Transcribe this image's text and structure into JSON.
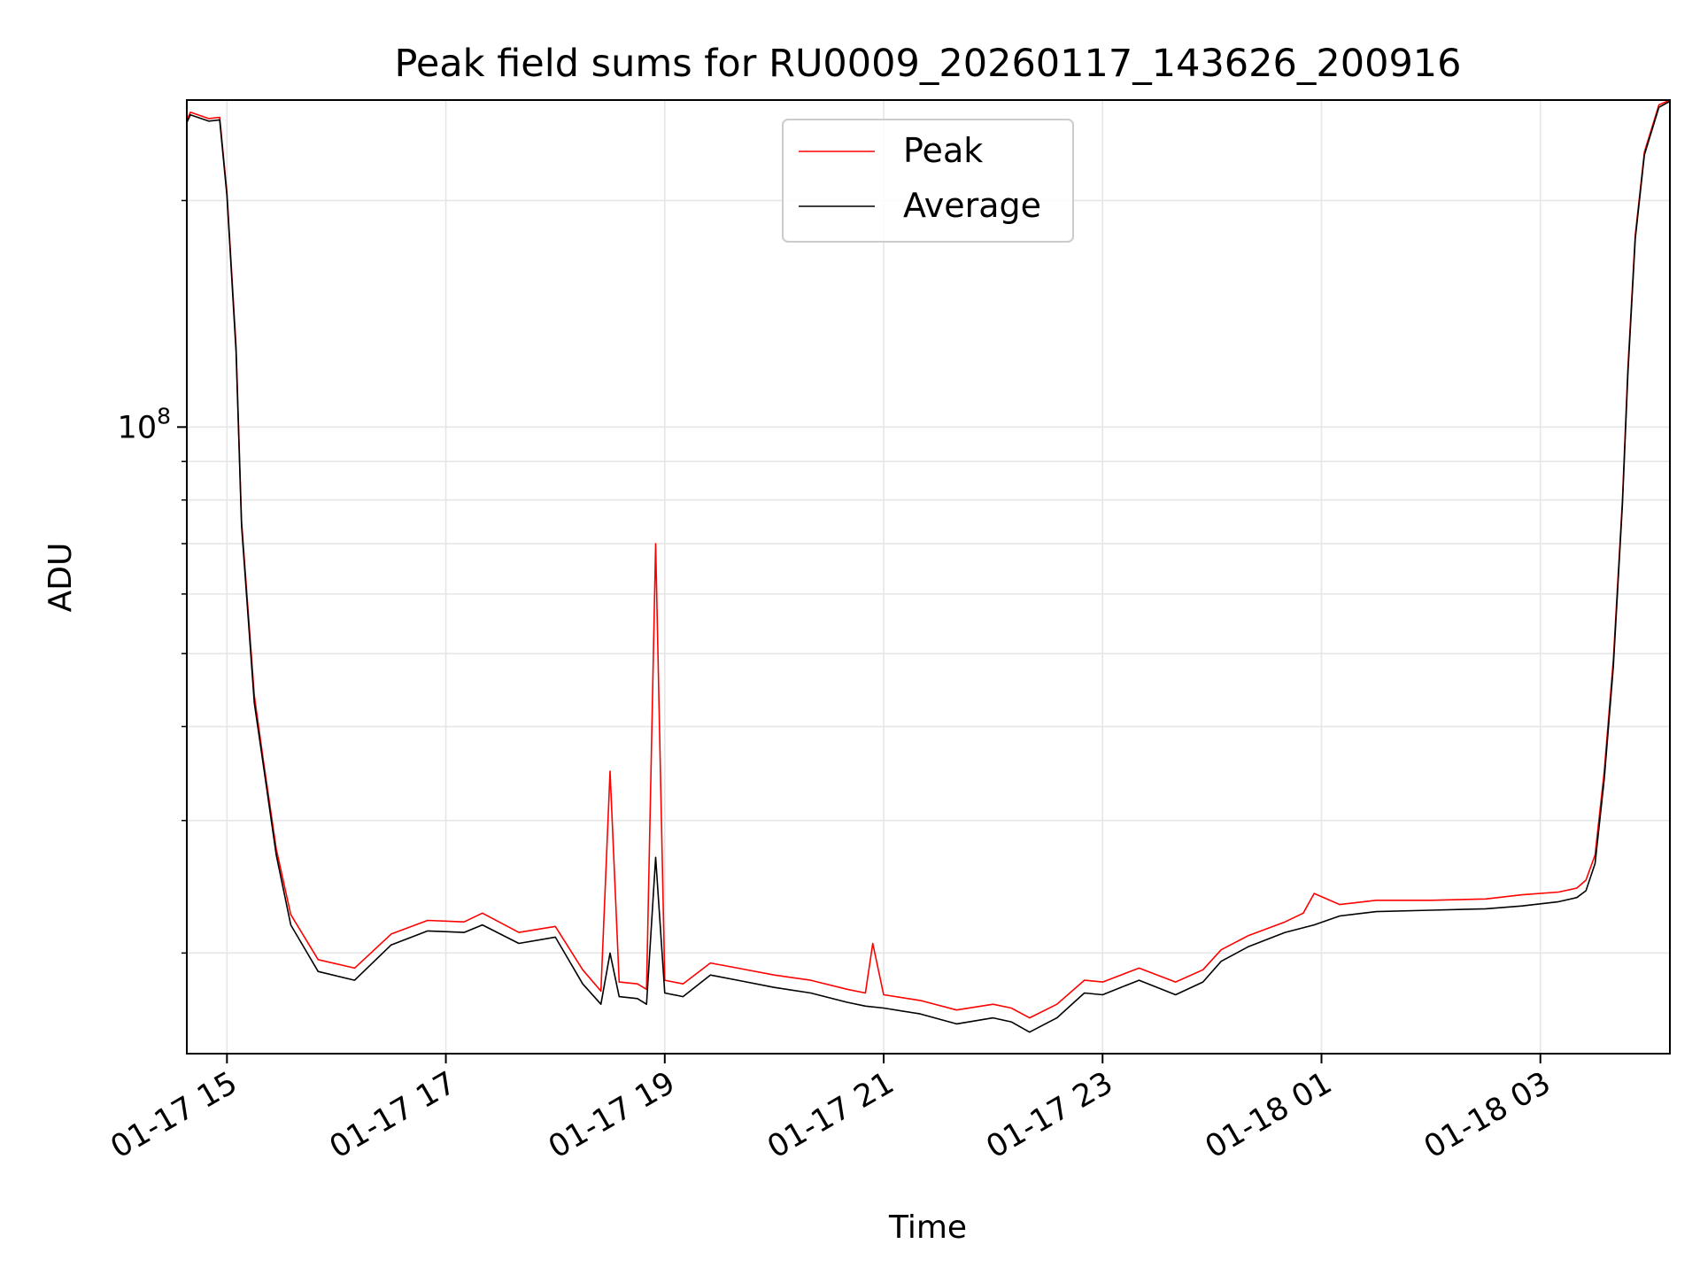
{
  "chart_data": {
    "type": "line",
    "title": "Peak field sums for RU0009_20260117_143626_200916",
    "xlabel": "Time",
    "ylabel": "ADU",
    "y_scale": "log",
    "grid": true,
    "legend_position": "upper center",
    "xlim": [
      "2026-01-17 14:38",
      "2026-01-18 04:11"
    ],
    "ylim": [
      14700000,
      272000000
    ],
    "x_ticks": [
      {
        "value": "2026-01-17 15:00",
        "label": "01-17 15"
      },
      {
        "value": "2026-01-17 17:00",
        "label": "01-17 17"
      },
      {
        "value": "2026-01-17 19:00",
        "label": "01-17 19"
      },
      {
        "value": "2026-01-17 21:00",
        "label": "01-17 21"
      },
      {
        "value": "2026-01-17 23:00",
        "label": "01-17 23"
      },
      {
        "value": "2026-01-18 01:00",
        "label": "01-18 01"
      },
      {
        "value": "2026-01-18 03:00",
        "label": "01-18 03"
      }
    ],
    "y_major_ticks": [
      {
        "value": 100000000,
        "base": "10",
        "exp": "8"
      }
    ],
    "y_minor_ticks": [
      20000000,
      30000000,
      40000000,
      50000000,
      60000000,
      70000000,
      80000000,
      90000000,
      200000000
    ],
    "series": [
      {
        "name": "Peak",
        "color": "#ff0000",
        "x": [
          "2026-01-17 14:38",
          "2026-01-17 14:40",
          "2026-01-17 14:50",
          "2026-01-17 14:56",
          "2026-01-17 15:00",
          "2026-01-17 15:05",
          "2026-01-17 15:08",
          "2026-01-17 15:15",
          "2026-01-17 15:20",
          "2026-01-17 15:27",
          "2026-01-17 15:35",
          "2026-01-17 15:50",
          "2026-01-17 16:10",
          "2026-01-17 16:30",
          "2026-01-17 16:50",
          "2026-01-17 17:10",
          "2026-01-17 17:20",
          "2026-01-17 17:40",
          "2026-01-17 18:00",
          "2026-01-17 18:15",
          "2026-01-17 18:25",
          "2026-01-17 18:30",
          "2026-01-17 18:35",
          "2026-01-17 18:45",
          "2026-01-17 18:50",
          "2026-01-17 18:55",
          "2026-01-17 19:00",
          "2026-01-17 19:10",
          "2026-01-17 19:25",
          "2026-01-17 19:40",
          "2026-01-17 20:00",
          "2026-01-17 20:20",
          "2026-01-17 20:40",
          "2026-01-17 20:50",
          "2026-01-17 20:54",
          "2026-01-17 21:00",
          "2026-01-17 21:20",
          "2026-01-17 21:40",
          "2026-01-17 22:00",
          "2026-01-17 22:10",
          "2026-01-17 22:20",
          "2026-01-17 22:35",
          "2026-01-17 22:50",
          "2026-01-17 23:00",
          "2026-01-17 23:10",
          "2026-01-17 23:20",
          "2026-01-17 23:40",
          "2026-01-17 23:55",
          "2026-01-18 00:05",
          "2026-01-18 00:20",
          "2026-01-18 00:40",
          "2026-01-18 00:50",
          "2026-01-18 00:56",
          "2026-01-18 01:10",
          "2026-01-18 01:30",
          "2026-01-18 02:00",
          "2026-01-18 02:30",
          "2026-01-18 02:50",
          "2026-01-18 03:10",
          "2026-01-18 03:20",
          "2026-01-18 03:25",
          "2026-01-18 03:30",
          "2026-01-18 03:35",
          "2026-01-18 03:40",
          "2026-01-18 03:45",
          "2026-01-18 03:48",
          "2026-01-18 03:52",
          "2026-01-18 03:57",
          "2026-01-18 04:05",
          "2026-01-18 04:11"
        ],
        "y": [
          256000000,
          262000000,
          257000000,
          258000000,
          205000000,
          128000000,
          75000000,
          44000000,
          36000000,
          27500000,
          22500000,
          19600000,
          19100000,
          21200000,
          22100000,
          22000000,
          22600000,
          21300000,
          21700000,
          19000000,
          17800000,
          34900000,
          18300000,
          18200000,
          17900000,
          70000000,
          18400000,
          18200000,
          19400000,
          19100000,
          18700000,
          18400000,
          17900000,
          17700000,
          20600000,
          17600000,
          17300000,
          16800000,
          17100000,
          16900000,
          16400000,
          17100000,
          18400000,
          18300000,
          18700000,
          19100000,
          18300000,
          19000000,
          20200000,
          21100000,
          22000000,
          22600000,
          24000000,
          23200000,
          23500000,
          23500000,
          23600000,
          23900000,
          24100000,
          24400000,
          25000000,
          27000000,
          34800000,
          49000000,
          80000000,
          120000000,
          180000000,
          232000000,
          268000000,
          272000000
        ]
      },
      {
        "name": "Average",
        "color": "#000000",
        "x": [
          "2026-01-17 14:38",
          "2026-01-17 14:40",
          "2026-01-17 14:50",
          "2026-01-17 14:56",
          "2026-01-17 15:00",
          "2026-01-17 15:05",
          "2026-01-17 15:08",
          "2026-01-17 15:15",
          "2026-01-17 15:20",
          "2026-01-17 15:27",
          "2026-01-17 15:35",
          "2026-01-17 15:50",
          "2026-01-17 16:10",
          "2026-01-17 16:30",
          "2026-01-17 16:50",
          "2026-01-17 17:10",
          "2026-01-17 17:20",
          "2026-01-17 17:40",
          "2026-01-17 18:00",
          "2026-01-17 18:15",
          "2026-01-17 18:25",
          "2026-01-17 18:30",
          "2026-01-17 18:35",
          "2026-01-17 18:45",
          "2026-01-17 18:50",
          "2026-01-17 18:55",
          "2026-01-17 19:00",
          "2026-01-17 19:10",
          "2026-01-17 19:25",
          "2026-01-17 19:40",
          "2026-01-17 20:00",
          "2026-01-17 20:20",
          "2026-01-17 20:40",
          "2026-01-17 20:50",
          "2026-01-17 21:00",
          "2026-01-17 21:20",
          "2026-01-17 21:40",
          "2026-01-17 22:00",
          "2026-01-17 22:10",
          "2026-01-17 22:20",
          "2026-01-17 22:35",
          "2026-01-17 22:50",
          "2026-01-17 23:00",
          "2026-01-17 23:10",
          "2026-01-17 23:20",
          "2026-01-17 23:40",
          "2026-01-17 23:55",
          "2026-01-18 00:05",
          "2026-01-18 00:20",
          "2026-01-18 00:40",
          "2026-01-18 00:56",
          "2026-01-18 01:10",
          "2026-01-18 01:30",
          "2026-01-18 02:00",
          "2026-01-18 02:30",
          "2026-01-18 02:50",
          "2026-01-18 03:10",
          "2026-01-18 03:20",
          "2026-01-18 03:25",
          "2026-01-18 03:30",
          "2026-01-18 03:35",
          "2026-01-18 03:40",
          "2026-01-18 03:45",
          "2026-01-18 03:48",
          "2026-01-18 03:52",
          "2026-01-18 03:57",
          "2026-01-18 04:05",
          "2026-01-18 04:11"
        ],
        "y": [
          254000000,
          260000000,
          255000000,
          256000000,
          203000000,
          126000000,
          74000000,
          43000000,
          35500000,
          27000000,
          21800000,
          18900000,
          18400000,
          20500000,
          21400000,
          21300000,
          21800000,
          20600000,
          21000000,
          18200000,
          17100000,
          20000000,
          17500000,
          17400000,
          17100000,
          26800000,
          17700000,
          17500000,
          18700000,
          18400000,
          18000000,
          17700000,
          17200000,
          17000000,
          16900000,
          16600000,
          16100000,
          16400000,
          16200000,
          15700000,
          16400000,
          17700000,
          17600000,
          18000000,
          18400000,
          17600000,
          18300000,
          19500000,
          20400000,
          21300000,
          21800000,
          22400000,
          22700000,
          22800000,
          22900000,
          23100000,
          23400000,
          23700000,
          24200000,
          26300000,
          34000000,
          48000000,
          79000000,
          118000000,
          178000000,
          230000000,
          266000000,
          271000000
        ]
      }
    ]
  }
}
